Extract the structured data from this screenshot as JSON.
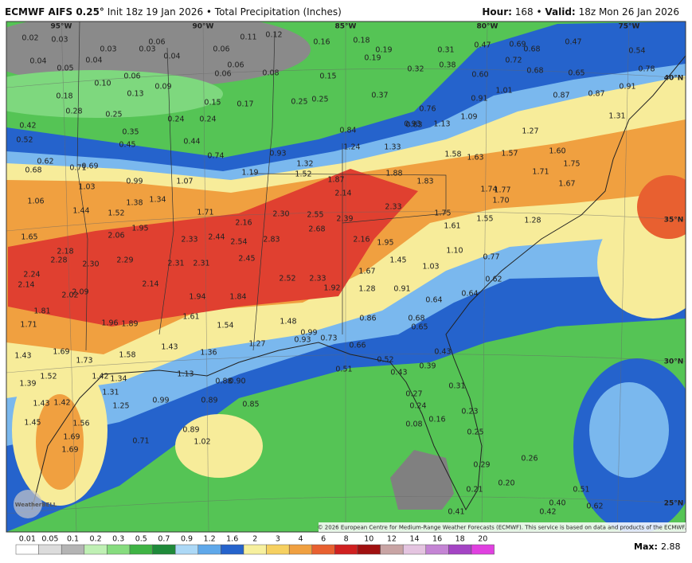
{
  "header": {
    "model": "ECMWF AIFS 0.25°",
    "subtitle": "Init 18z 19 Jan 2026 • Total Precipitation (Inches)",
    "hour_label": "Hour:",
    "hour": "168 •",
    "valid_label": "Valid:",
    "valid": "18z Mon 26 Jan 2026"
  },
  "map": {
    "lon_labels": [
      "95°W",
      "90°W",
      "85°W",
      "80°W",
      "75°W"
    ],
    "lat_labels": [
      "40°N",
      "35°N",
      "30°N",
      "25°N"
    ],
    "values": [
      "0.02",
      "0.03",
      "0.04",
      "0.05",
      "0.04",
      "0.03",
      "0.06",
      "0.03",
      "0.04",
      "0.06",
      "0.11",
      "0.12",
      "0.16",
      "0.18",
      "0.19",
      "0.19",
      "0.31",
      "0.38",
      "0.32",
      "0.47",
      "0.69",
      "0.68",
      "0.47",
      "0.72",
      "0.68",
      "0.65",
      "0.60",
      "0.06",
      "0.06",
      "0.06",
      "0.08",
      "0.15",
      "0.10",
      "0.09",
      "0.18",
      "0.13",
      "0.15",
      "0.17",
      "0.25",
      "0.25",
      "0.37",
      "0.28",
      "0.25",
      "0.24",
      "0.24",
      "0.42",
      "0.52",
      "0.35",
      "0.45",
      "0.44",
      "0.84",
      "0.93",
      "1.13",
      "0.91",
      "1.09",
      "1.27",
      "1.24",
      "1.33",
      "0.62",
      "0.68",
      "0.71",
      "0.69",
      "0.93",
      "1.32",
      "1.52",
      "1.19",
      "1.87",
      "2.14",
      "1.88",
      "1.83",
      "2.33",
      "1.58",
      "1.63",
      "1.57",
      "1.60",
      "1.75",
      "1.71",
      "1.74",
      "1.77",
      "1.70",
      "1.67",
      "1.03",
      "0.99",
      "1.07",
      "1.34",
      "1.38",
      "1.06",
      "1.44",
      "1.52",
      "1.71",
      "1.65",
      "2.06",
      "1.95",
      "2.16",
      "2.30",
      "2.55",
      "2.39",
      "2.68",
      "1.75",
      "1.61",
      "1.55",
      "1.28",
      "2.33",
      "2.44",
      "2.54",
      "2.83",
      "2.16",
      "1.95",
      "1.10",
      "2.18",
      "2.28",
      "2.30",
      "2.29",
      "2.31",
      "2.31",
      "2.45",
      "1.67",
      "1.45",
      "1.03",
      "0.77",
      "2.24",
      "2.14",
      "2.52",
      "2.33",
      "1.92",
      "1.28",
      "0.91",
      "2.09",
      "2.02",
      "2.14",
      "1.94",
      "1.84",
      "0.62",
      "0.64",
      "0.64",
      "1.81",
      "1.71",
      "1.96",
      "1.89",
      "1.61",
      "1.54",
      "1.48",
      "0.86",
      "0.68",
      "0.65",
      "0.99",
      "0.93",
      "0.73",
      "1.43",
      "1.69",
      "1.58",
      "1.43",
      "1.36",
      "1.27",
      "0.66",
      "0.52",
      "0.43",
      "0.39",
      "0.51",
      "0.43",
      "1.73",
      "1.42",
      "1.34",
      "1.13",
      "1.52",
      "1.39",
      "0.31",
      "1.31",
      "0.90",
      "0.88",
      "1.43",
      "1.42",
      "1.25",
      "0.99",
      "0.89",
      "0.85",
      "0.27",
      "0.24",
      "0.23",
      "1.45",
      "1.56",
      "0.16",
      "0.08",
      "1.69",
      "1.69",
      "0.71",
      "0.89",
      "1.02",
      "0.25",
      "0.29",
      "0.20",
      "0.21",
      "0.51",
      "0.62",
      "0.40",
      "0.42",
      "0.26",
      "0.41",
      "0.54",
      "0.78",
      "0.91",
      "0.87",
      "0.87",
      "1.01",
      "1.31",
      "0.76",
      "0.83",
      "0.74"
    ],
    "copyright": "© 2026 European Centre for Medium-Range Weather Forecasts (ECMWF). This service is based on data and products of the ECMWF.",
    "logo": "WeatherBELL"
  },
  "colorbar": {
    "ticks": [
      0.01,
      0.05,
      0.1,
      0.2,
      0.3,
      0.5,
      0.7,
      0.9,
      1.2,
      1.6,
      2,
      3,
      4,
      6,
      8,
      10,
      12,
      14,
      16,
      18,
      20
    ],
    "colors": [
      "#ffffff",
      "#dcdcdc",
      "#b4b4b4",
      "#bff0b4",
      "#86dc7e",
      "#3fb444",
      "#1f8a3a",
      "#acd8f6",
      "#5fa8ea",
      "#2563cc",
      "#f7f09e",
      "#f6d060",
      "#f0a040",
      "#e86030",
      "#d02020",
      "#a01010",
      "#c8a4a4",
      "#e4c4e0",
      "#c484d4",
      "#a444c4",
      "#e040e0"
    ],
    "max_label": "Max:",
    "max": "2.88"
  }
}
